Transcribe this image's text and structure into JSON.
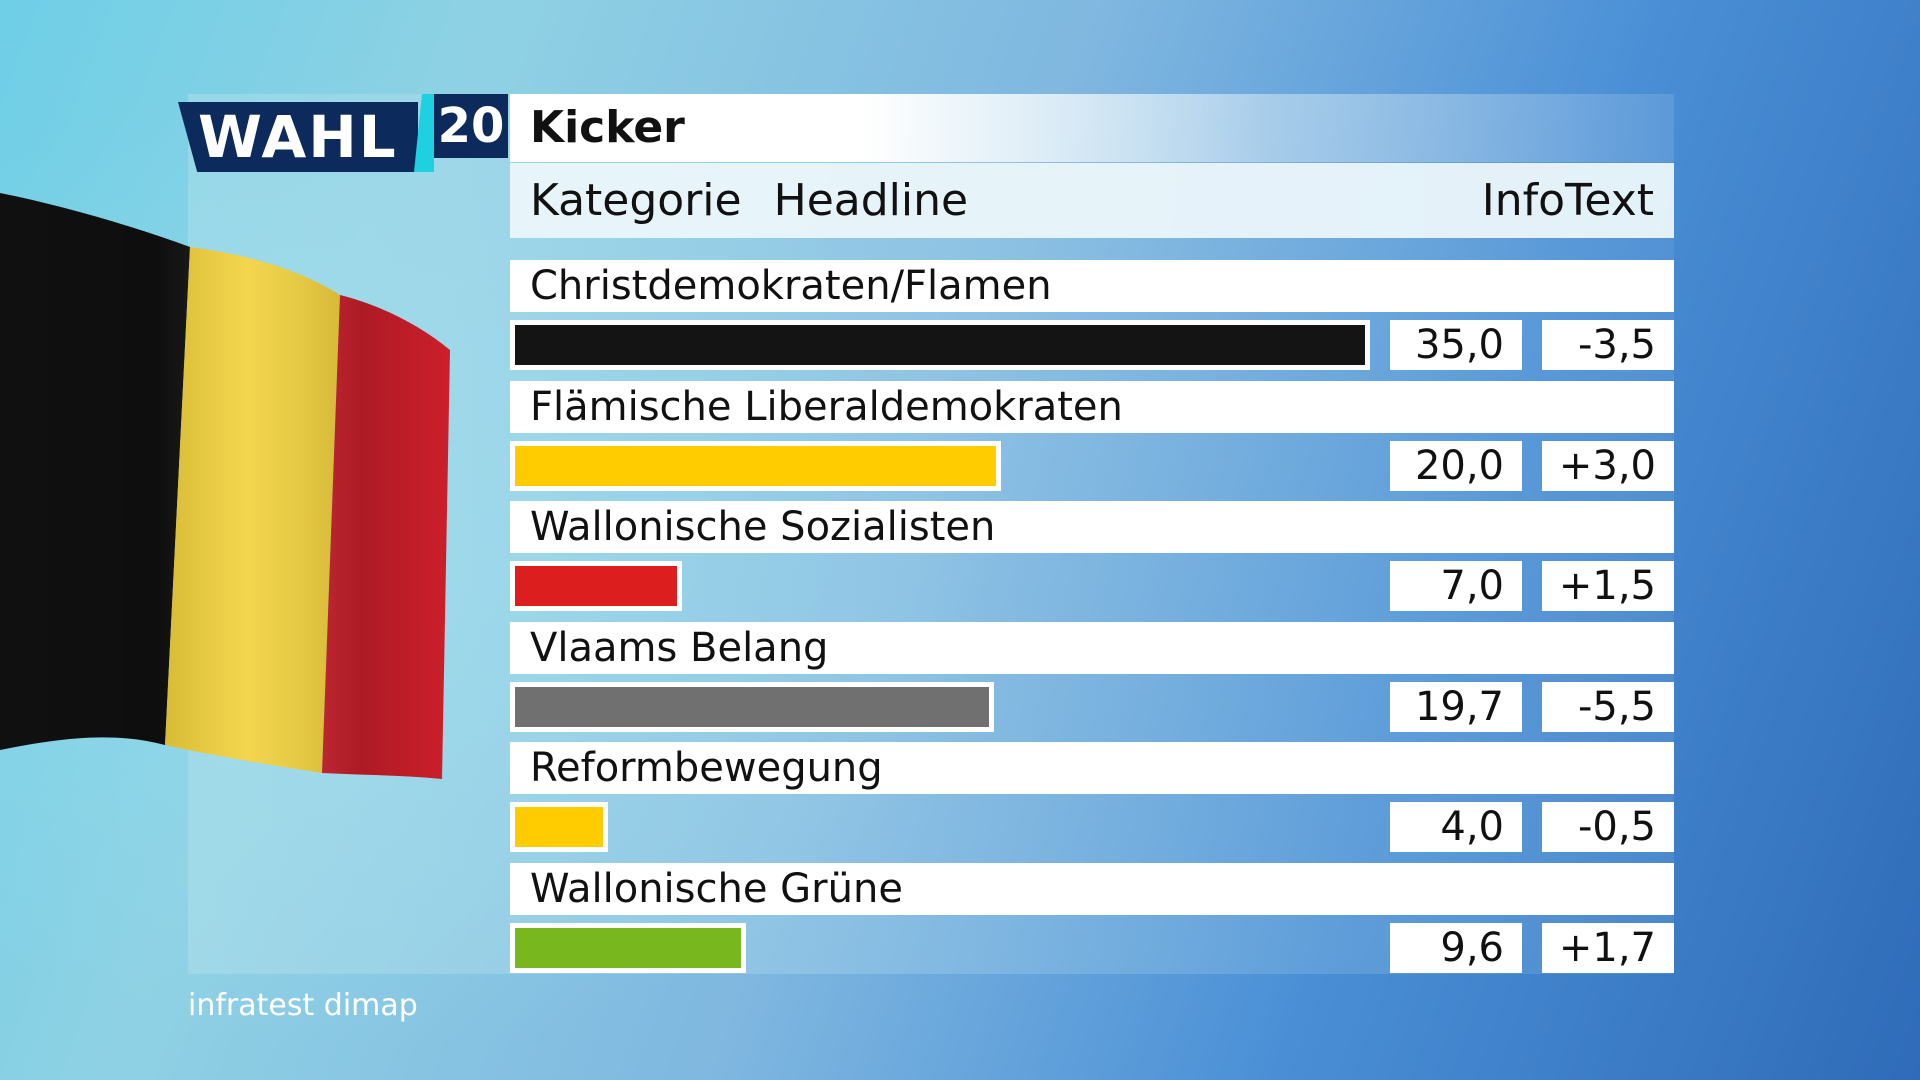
{
  "logo": {
    "text": "WAHL",
    "number": "20"
  },
  "header": {
    "kicker": "Kicker",
    "kategorie": "Kategorie",
    "headline": "Headline",
    "infotext": "InfoText"
  },
  "chart_data": {
    "type": "bar",
    "orientation": "horizontal",
    "categories": [
      "Christdemokraten/Flamen",
      "Flämische Liberaldemokraten",
      "Wallonische Sozialisten",
      "Vlaams Belang",
      "Reformbewegung",
      "Wallonische Grüne"
    ],
    "values": [
      35.0,
      20.0,
      7.0,
      19.7,
      4.0,
      9.6
    ],
    "value_labels": [
      "35,0",
      "20,0",
      "7,0",
      "19,7",
      "4,0",
      "9,6"
    ],
    "changes": [
      "-3,5",
      "+3,0",
      "+1,5",
      "-5,5",
      "-0,5",
      "+1,7"
    ],
    "colors": [
      "#141414",
      "#ffcc00",
      "#dc1e1e",
      "#707070",
      "#ffcc00",
      "#78b81e"
    ],
    "max_value": 35.0
  },
  "source": "infratest dimap"
}
